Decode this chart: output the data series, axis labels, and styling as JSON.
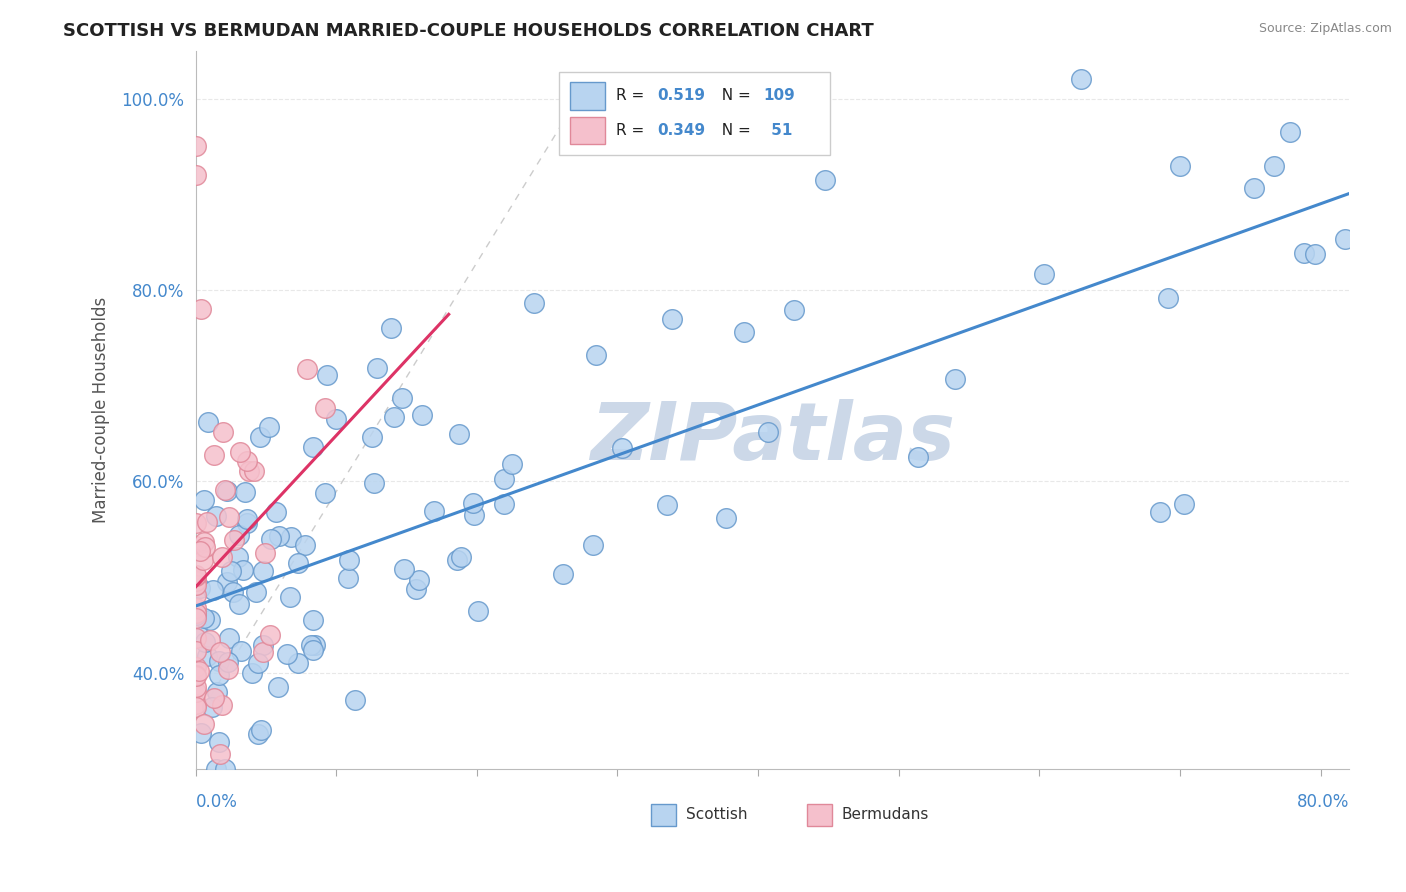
{
  "title": "SCOTTISH VS BERMUDAN MARRIED-COUPLE HOUSEHOLDS CORRELATION CHART",
  "source": "Source: ZipAtlas.com",
  "ylabel": "Married-couple Households",
  "scottish_color": "#b8d4f0",
  "scottish_edge": "#6699cc",
  "bermudan_color": "#f5c0cc",
  "bermudan_edge": "#e08899",
  "trend_scottish_color": "#4488cc",
  "trend_bermudan_color": "#dd3366",
  "diagonal_color": "#cccccc",
  "watermark_color": "#ccd8e8",
  "background_color": "#ffffff",
  "grid_color": "#e8e8e8",
  "xlim": [
    0.0,
    0.82
  ],
  "ylim": [
    0.3,
    1.05
  ],
  "ytick_vals": [
    0.4,
    0.6,
    0.8,
    1.0
  ],
  "ytick_labels": [
    "40.0%",
    "60.0%",
    "80.0%",
    "100.0%"
  ],
  "scottish_N": 109,
  "bermudan_N": 51,
  "scottish_R": 0.519,
  "bermudan_R": 0.349,
  "legend_scot_text": "R = 0.519  N = 109",
  "legend_berm_text": "R = 0.349  N =  51",
  "legend_R_color": "#4488cc",
  "legend_N_color": "#222222"
}
